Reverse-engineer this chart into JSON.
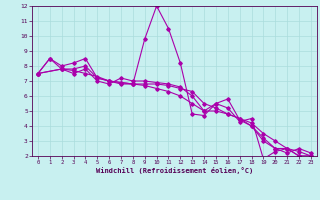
{
  "title": "",
  "xlabel": "Windchill (Refroidissement éolien,°C)",
  "ylabel": "",
  "xlim": [
    -0.5,
    23.5
  ],
  "ylim": [
    2,
    12
  ],
  "yticks": [
    2,
    3,
    4,
    5,
    6,
    7,
    8,
    9,
    10,
    11,
    12
  ],
  "xticks": [
    0,
    1,
    2,
    3,
    4,
    5,
    6,
    7,
    8,
    9,
    10,
    11,
    12,
    13,
    14,
    15,
    16,
    17,
    18,
    19,
    20,
    21,
    22,
    23
  ],
  "background_color": "#c8f0f0",
  "line_color": "#aa00aa",
  "grid_color": "#aadddd",
  "line1_x": [
    0,
    1,
    2,
    3,
    4,
    5,
    6,
    7,
    8,
    9,
    10,
    11,
    12,
    13,
    14,
    15,
    16,
    17,
    18,
    19,
    20,
    21,
    22,
    23
  ],
  "line1_y": [
    7.5,
    8.5,
    8.0,
    8.2,
    8.5,
    7.2,
    7.0,
    6.8,
    6.8,
    9.8,
    12.0,
    10.5,
    8.2,
    4.8,
    4.7,
    5.5,
    5.2,
    4.3,
    4.5,
    1.8,
    2.3,
    2.5,
    2.0,
    2.0
  ],
  "line2_x": [
    0,
    2,
    3,
    4,
    5,
    6,
    7,
    8,
    9,
    10,
    11,
    12,
    13,
    14,
    15,
    16,
    17,
    18,
    19,
    20,
    21,
    22,
    23
  ],
  "line2_y": [
    7.5,
    7.8,
    7.8,
    8.0,
    7.2,
    7.0,
    6.9,
    6.8,
    6.8,
    6.8,
    6.7,
    6.5,
    6.3,
    5.5,
    5.2,
    4.8,
    4.5,
    4.2,
    3.5,
    3.0,
    2.5,
    2.3,
    2.0
  ],
  "line3_x": [
    0,
    2,
    3,
    4,
    5,
    6,
    7,
    8,
    9,
    10,
    11,
    12,
    13,
    14,
    15,
    16,
    17,
    18,
    19,
    20,
    21,
    22,
    23
  ],
  "line3_y": [
    7.5,
    7.8,
    7.5,
    7.8,
    7.0,
    6.8,
    7.2,
    7.0,
    7.0,
    6.9,
    6.8,
    6.6,
    6.0,
    5.0,
    5.5,
    5.8,
    4.4,
    4.0,
    3.2,
    2.5,
    2.2,
    2.5,
    2.2
  ],
  "line4_x": [
    0,
    1,
    2,
    3,
    4,
    5,
    6,
    7,
    8,
    9,
    10,
    11,
    12,
    13,
    14,
    15,
    16,
    17,
    18,
    19,
    20,
    21,
    22,
    23
  ],
  "line4_y": [
    7.5,
    8.5,
    7.8,
    7.7,
    7.5,
    7.3,
    7.0,
    6.9,
    6.8,
    6.7,
    6.5,
    6.3,
    6.0,
    5.5,
    5.0,
    5.0,
    4.8,
    4.5,
    4.0,
    3.0,
    2.5,
    2.5,
    2.0,
    2.0
  ]
}
